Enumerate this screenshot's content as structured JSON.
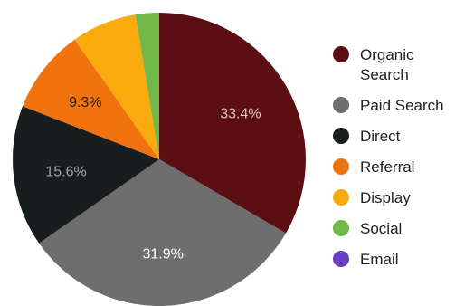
{
  "chart_data": {
    "type": "pie",
    "title": "",
    "categories": [
      "Organic Search",
      "Paid Search",
      "Direct",
      "Referral",
      "Display",
      "Social",
      "Email"
    ],
    "values": [
      33.4,
      31.9,
      15.6,
      9.3,
      7.2,
      2.6,
      0
    ],
    "value_labels": [
      "33.4%",
      "31.9%",
      "15.6%",
      "9.3%",
      "",
      "",
      ""
    ],
    "colors": [
      "#5c0f12",
      "#6e6e6e",
      "#181e1e",
      "#f0730f",
      "#f9aa0c",
      "#71b74a",
      "#6a3fc0"
    ],
    "label_colors": [
      "#dcc4c4",
      "#ffffff",
      "#9aa4a4",
      "#1f1f1f",
      "#1f1f1f",
      "#1f1f1f",
      "#ffffff"
    ],
    "start_angle_deg": 0,
    "direction": "clockwise",
    "legend_position": "right"
  },
  "legend": {
    "items": [
      {
        "label": "Organic\nSearch",
        "color": "#5c0f12"
      },
      {
        "label": "Paid Search",
        "color": "#6e6e6e"
      },
      {
        "label": "Direct",
        "color": "#181e1e"
      },
      {
        "label": "Referral",
        "color": "#f0730f"
      },
      {
        "label": "Display",
        "color": "#f9aa0c"
      },
      {
        "label": "Social",
        "color": "#71b74a"
      },
      {
        "label": "Email",
        "color": "#6a3fc0"
      }
    ]
  }
}
